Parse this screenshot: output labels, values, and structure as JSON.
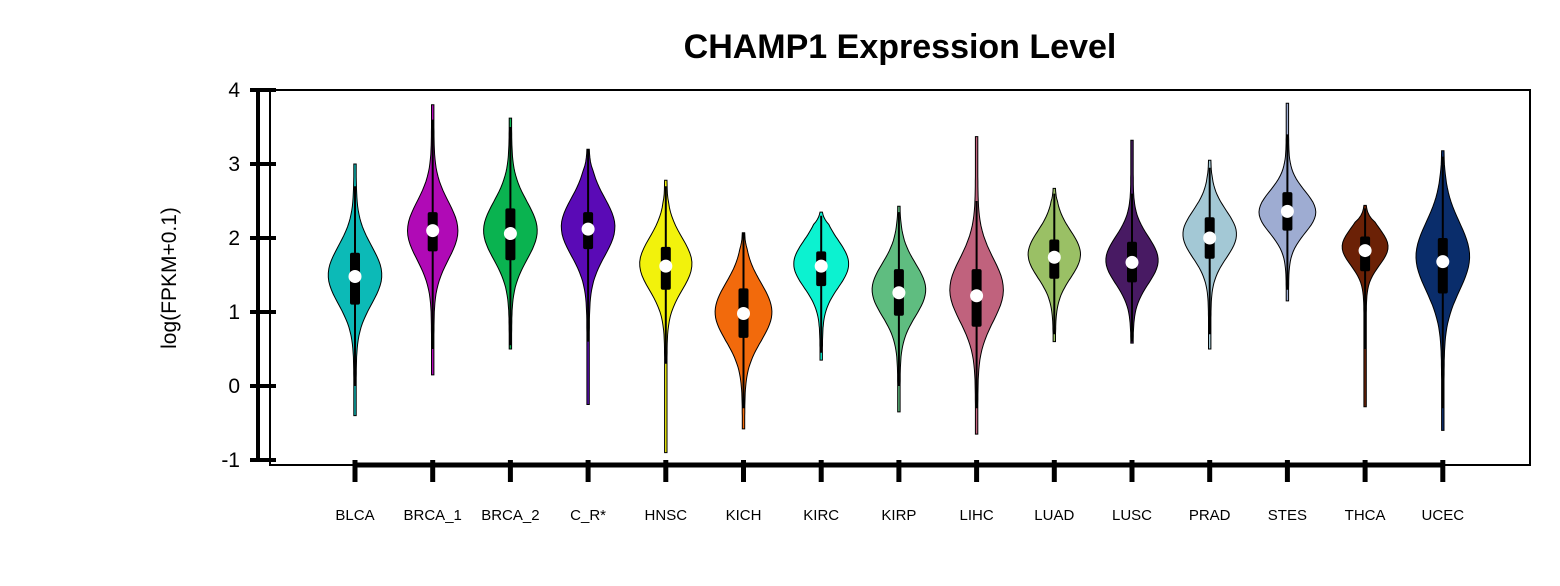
{
  "chart_data": {
    "type": "violin",
    "title": "CHAMP1 Expression Level",
    "ylabel": "log(FPKM+0.1)",
    "xlabel": "",
    "ylim": [
      -1,
      4
    ],
    "yticks": [
      -1,
      0,
      1,
      2,
      3,
      4
    ],
    "grid": false,
    "legend": "none",
    "categories": [
      "BLCA",
      "BRCA_1",
      "BRCA_2",
      "C_R*",
      "HNSC",
      "KICH",
      "KIRC",
      "KIRP",
      "LIHC",
      "LUAD",
      "LUSC",
      "PRAD",
      "STES",
      "THCA",
      "UCEC"
    ],
    "series": [
      {
        "color": "#0cbab7",
        "min": -0.4,
        "max": 3.0,
        "q1": 1.1,
        "q3": 1.8,
        "median": 1.48,
        "wmin": 0.0,
        "wmax": 2.7,
        "width": 0.8,
        "peak": 1.5,
        "spread": 0.55
      },
      {
        "color": "#b00ab6",
        "min": 0.15,
        "max": 3.8,
        "q1": 1.82,
        "q3": 2.35,
        "median": 2.1,
        "wmin": 0.5,
        "wmax": 3.6,
        "width": 0.75,
        "peak": 2.1,
        "spread": 0.55
      },
      {
        "color": "#0ab350",
        "min": 0.5,
        "max": 3.62,
        "q1": 1.7,
        "q3": 2.4,
        "median": 2.06,
        "wmin": 0.55,
        "wmax": 3.5,
        "width": 0.8,
        "peak": 2.1,
        "spread": 0.55
      },
      {
        "color": "#5a0ab6",
        "min": -0.25,
        "max": 3.2,
        "q1": 1.85,
        "q3": 2.35,
        "median": 2.12,
        "wmin": 0.6,
        "wmax": 3.2,
        "width": 0.8,
        "peak": 2.15,
        "spread": 0.55
      },
      {
        "color": "#f2f20c",
        "min": -0.9,
        "max": 2.78,
        "q1": 1.3,
        "q3": 1.88,
        "median": 1.62,
        "wmin": 0.3,
        "wmax": 2.7,
        "width": 0.78,
        "peak": 1.65,
        "spread": 0.5
      },
      {
        "color": "#f26a0c",
        "min": -0.58,
        "max": 2.07,
        "q1": 0.65,
        "q3": 1.32,
        "median": 0.98,
        "wmin": -0.3,
        "wmax": 2.07,
        "width": 0.85,
        "peak": 1.0,
        "spread": 0.55
      },
      {
        "color": "#0cf2d0",
        "min": 0.35,
        "max": 2.35,
        "q1": 1.35,
        "q3": 1.82,
        "median": 1.62,
        "wmin": 0.45,
        "wmax": 2.3,
        "width": 0.82,
        "peak": 1.65,
        "spread": 0.45
      },
      {
        "color": "#5fbd80",
        "min": -0.35,
        "max": 2.43,
        "q1": 0.95,
        "q3": 1.58,
        "median": 1.26,
        "wmin": 0.0,
        "wmax": 2.35,
        "width": 0.8,
        "peak": 1.3,
        "spread": 0.5
      },
      {
        "color": "#c0627d",
        "min": -0.65,
        "max": 3.37,
        "q1": 0.8,
        "q3": 1.58,
        "median": 1.22,
        "wmin": -0.3,
        "wmax": 2.5,
        "width": 0.8,
        "peak": 1.3,
        "spread": 0.6
      },
      {
        "color": "#9ac065",
        "min": 0.6,
        "max": 2.67,
        "q1": 1.45,
        "q3": 1.98,
        "median": 1.74,
        "wmin": 0.7,
        "wmax": 2.6,
        "width": 0.78,
        "peak": 1.78,
        "spread": 0.45
      },
      {
        "color": "#481a63",
        "min": 0.58,
        "max": 3.32,
        "q1": 1.4,
        "q3": 1.95,
        "median": 1.67,
        "wmin": 0.6,
        "wmax": 2.6,
        "width": 0.78,
        "peak": 1.7,
        "spread": 0.45
      },
      {
        "color": "#a3c8d5",
        "min": 0.5,
        "max": 3.05,
        "q1": 1.72,
        "q3": 2.28,
        "median": 2.0,
        "wmin": 0.7,
        "wmax": 2.95,
        "width": 0.8,
        "peak": 2.05,
        "spread": 0.45
      },
      {
        "color": "#9eacd2",
        "min": 1.15,
        "max": 3.82,
        "q1": 2.1,
        "q3": 2.62,
        "median": 2.36,
        "wmin": 1.3,
        "wmax": 3.4,
        "width": 0.85,
        "peak": 2.35,
        "spread": 0.4
      },
      {
        "color": "#6b2106",
        "min": -0.28,
        "max": 2.44,
        "q1": 1.55,
        "q3": 2.02,
        "median": 1.83,
        "wmin": 0.5,
        "wmax": 2.4,
        "width": 0.68,
        "peak": 1.88,
        "spread": 0.35
      },
      {
        "color": "#0a2d6b",
        "min": -0.6,
        "max": 3.18,
        "q1": 1.25,
        "q3": 2.0,
        "median": 1.68,
        "wmin": -0.3,
        "wmax": 3.1,
        "width": 0.8,
        "peak": 1.75,
        "spread": 0.65
      }
    ]
  }
}
